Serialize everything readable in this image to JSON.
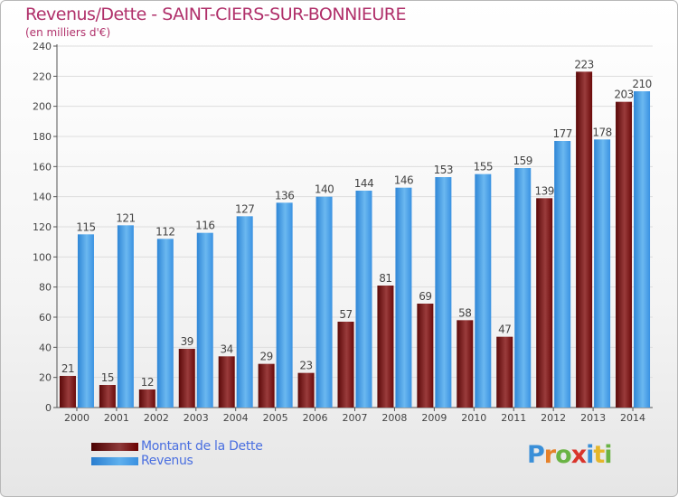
{
  "header": {
    "title": "Revenus/Dette - SAINT-CIERS-SUR-BONNIEURE",
    "subtitle": "(en milliers d'€)"
  },
  "legend": {
    "items": [
      {
        "label": "Montant de la Dette"
      },
      {
        "label": "Revenus"
      }
    ]
  },
  "logo": {
    "text": "Proxiti",
    "letter_colors": [
      "#3a8fd8",
      "#e5812a",
      "#6ab344",
      "#d9342b",
      "#3a8fd8",
      "#e5b62a",
      "#6ab344"
    ]
  },
  "colors": {
    "title": "#b0306a",
    "dette": "#7a1a1a",
    "revenus": "#4aa3e8",
    "axis_text": "#444444",
    "grid": "#dddddd"
  },
  "chart_data": {
    "type": "bar",
    "title": "Revenus/Dette - SAINT-CIERS-SUR-BONNIEURE",
    "subtitle": "(en milliers d'€)",
    "categories": [
      "2000",
      "2001",
      "2002",
      "2003",
      "2004",
      "2005",
      "2006",
      "2007",
      "2008",
      "2009",
      "2010",
      "2011",
      "2012",
      "2013",
      "2014"
    ],
    "series": [
      {
        "name": "Montant de la Dette",
        "values": [
          21,
          15,
          12,
          39,
          34,
          29,
          23,
          57,
          81,
          69,
          58,
          47,
          139,
          223,
          203
        ]
      },
      {
        "name": "Revenus",
        "values": [
          115,
          121,
          112,
          116,
          127,
          136,
          140,
          144,
          146,
          153,
          155,
          159,
          177,
          178,
          210
        ]
      }
    ],
    "ylim": [
      0,
      240
    ],
    "yticks": [
      0,
      20,
      40,
      60,
      80,
      100,
      120,
      140,
      160,
      180,
      200,
      220,
      240
    ],
    "grid": true,
    "data_labels": true,
    "legend_position": "bottom-left"
  }
}
